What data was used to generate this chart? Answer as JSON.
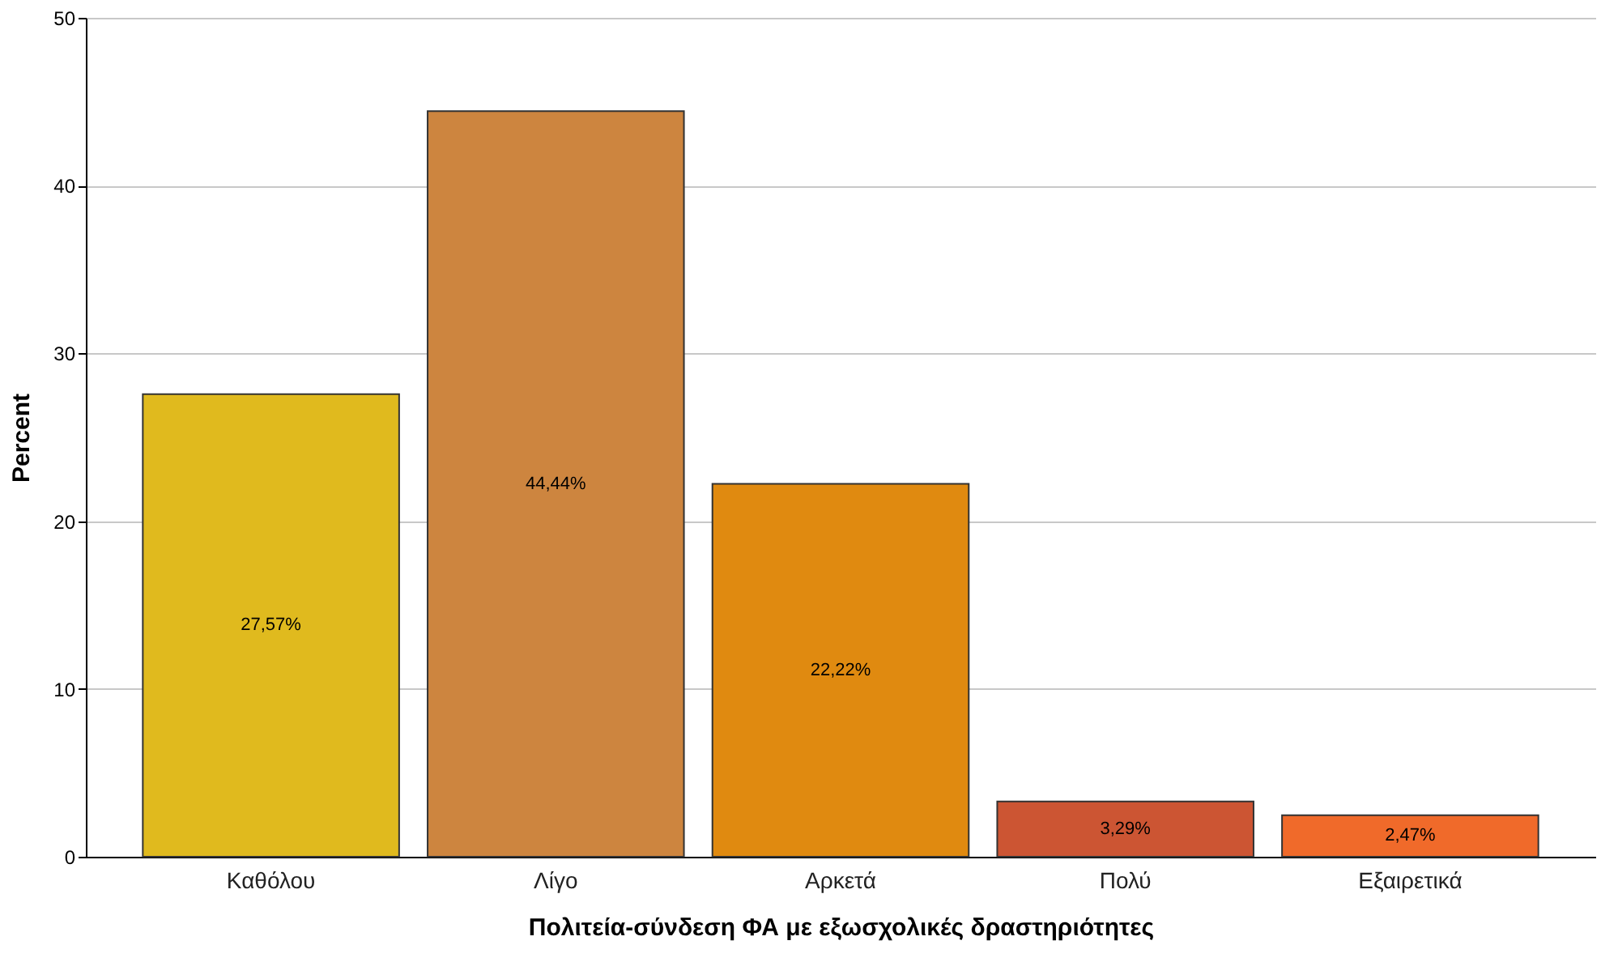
{
  "chart_data": {
    "type": "bar",
    "xlabel": "Πολιτεία-σύνδεση ΦΑ με εξωσχολικές δραστηριότητες",
    "ylabel": "Percent",
    "categories": [
      "Καθόλου",
      "Λίγο",
      "Αρκετά",
      "Πολύ",
      "Εξαιρετικά"
    ],
    "values": [
      27.57,
      44.44,
      22.22,
      3.29,
      2.47
    ],
    "colors": [
      "#e0ba1e",
      "#cd853f",
      "#e08a10",
      "#cc5533",
      "#f06a2a"
    ],
    "value_labels": [
      "27,57%",
      "44,44%",
      "22,22%",
      "3,29%",
      "2,47%"
    ],
    "ylim": [
      0,
      50
    ],
    "yticks": [
      0,
      10,
      20,
      30,
      40,
      50
    ],
    "grid": "y"
  }
}
